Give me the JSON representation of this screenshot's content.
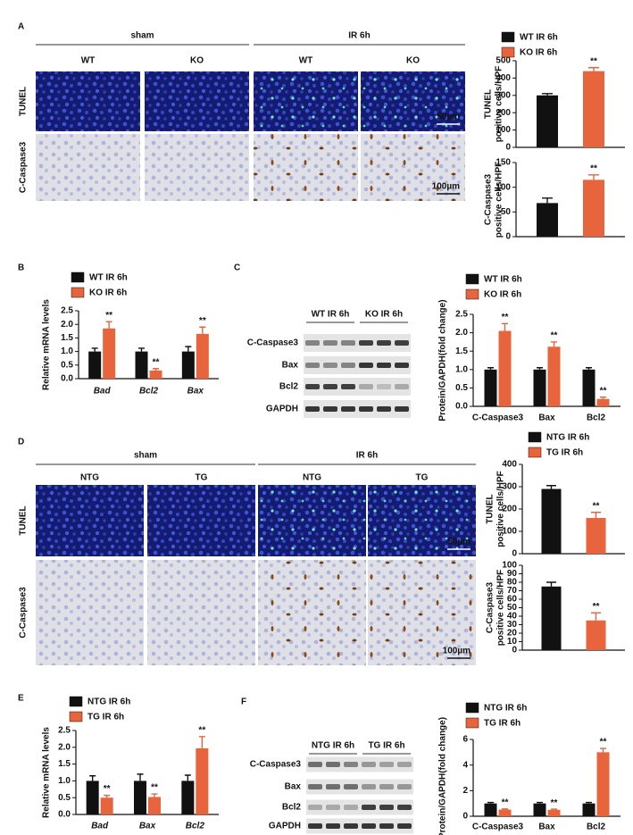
{
  "figure": {
    "panels": [
      {
        "letter": "A",
        "groups": [
          "sham",
          "IR 6h"
        ],
        "columns": [
          "WT",
          "KO",
          "WT",
          "KO"
        ],
        "rows": [
          "TUNEL",
          "C-Caspase3"
        ],
        "scale_bars": [
          "50µm",
          "100µm"
        ]
      },
      {
        "letter": "B"
      },
      {
        "letter": "C",
        "blot_groups": [
          "WT IR 6h",
          "KO IR 6h"
        ],
        "blot_rows": [
          "C-Caspase3",
          "Bax",
          "Bcl2",
          "GAPDH"
        ]
      },
      {
        "letter": "D",
        "groups": [
          "sham",
          "IR 6h"
        ],
        "columns": [
          "NTG",
          "TG",
          "NTG",
          "TG"
        ],
        "rows": [
          "TUNEL",
          "C-Caspase3"
        ],
        "scale_bars": [
          "50µm",
          "100µm"
        ]
      },
      {
        "letter": "E"
      },
      {
        "letter": "F",
        "blot_groups": [
          "NTG IR 6h",
          "TG IR 6h"
        ],
        "blot_rows": [
          "C-Caspase3",
          "Bax",
          "Bcl2",
          "GAPDH"
        ]
      }
    ]
  },
  "chart_data": [
    {
      "type": "bar",
      "ylabel": [
        "TUNEL",
        "positive cells/HPF"
      ],
      "categories": [
        null
      ],
      "series": [
        {
          "name": "WT IR 6h",
          "color": "#111111",
          "values": [
            300
          ],
          "errors": [
            10
          ]
        },
        {
          "name": "KO IR 6h",
          "color": "#e8643c",
          "values": [
            440
          ],
          "errors": [
            20
          ],
          "annotations": [
            "**"
          ]
        }
      ],
      "ylim": [
        0,
        500
      ],
      "yticks": [
        0,
        100,
        200,
        300,
        400,
        500
      ]
    },
    {
      "type": "bar",
      "ylabel": [
        "C-Caspase3",
        "positive cells/HPF"
      ],
      "categories": [
        null
      ],
      "series": [
        {
          "color": "#111111",
          "values": [
            68
          ],
          "errors": [
            10
          ]
        },
        {
          "color": "#e8643c",
          "values": [
            115
          ],
          "errors": [
            10
          ],
          "annotations": [
            "**"
          ]
        }
      ],
      "ylim": [
        0,
        150
      ],
      "yticks": [
        0,
        50,
        100,
        150
      ]
    },
    {
      "type": "bar",
      "ylabel": [
        "Relative mRNA levels"
      ],
      "categories": [
        "Bad",
        "Bcl2",
        "Bax"
      ],
      "italic_categories": true,
      "series": [
        {
          "name": "WT IR 6h",
          "color": "#111111",
          "values": [
            1.0,
            1.0,
            1.0
          ],
          "errors": [
            0.12,
            0.12,
            0.18
          ]
        },
        {
          "name": "KO IR 6h",
          "color": "#e8643c",
          "values": [
            1.85,
            0.3,
            1.65
          ],
          "errors": [
            0.25,
            0.07,
            0.25
          ],
          "annotations": [
            "**",
            "**",
            "**"
          ]
        }
      ],
      "ylim": [
        0,
        2.5
      ],
      "yticks": [
        {
          "value": 0,
          "label": "0.0"
        },
        0.5,
        {
          "value": 1,
          "label": "1.0"
        },
        1.5,
        {
          "value": 2,
          "label": "2.0"
        },
        2.5
      ]
    },
    {
      "type": "bar",
      "ylabel": [
        "Protein/GAPDH(fold change)"
      ],
      "categories": [
        "C-Caspase3",
        "Bax",
        "Bcl2"
      ],
      "italic_categories": false,
      "series": [
        {
          "name": "WT IR 6h",
          "color": "#111111",
          "values": [
            1.0,
            1.0,
            1.0
          ],
          "errors": [
            0.05,
            0.05,
            0.05
          ]
        },
        {
          "name": "KO IR 6h",
          "color": "#e8643c",
          "values": [
            2.05,
            1.62,
            0.2
          ],
          "errors": [
            0.2,
            0.13,
            0.05
          ],
          "annotations": [
            "**",
            "**",
            "**"
          ]
        }
      ],
      "ylim": [
        0,
        2.5
      ],
      "yticks": [
        {
          "value": 0,
          "label": "0.0"
        },
        0.5,
        {
          "value": 1,
          "label": "1.0"
        },
        1.5,
        {
          "value": 2,
          "label": "2.0"
        },
        2.5
      ]
    },
    {
      "type": "bar",
      "ylabel": [
        "TUNEL",
        "positive cells/HPF"
      ],
      "categories": [
        null
      ],
      "series": [
        {
          "name": "NTG IR 6h",
          "color": "#111111",
          "values": [
            290
          ],
          "errors": [
            15
          ]
        },
        {
          "name": "TG IR 6h",
          "color": "#e8643c",
          "values": [
            160
          ],
          "errors": [
            25
          ],
          "annotations": [
            "**"
          ]
        }
      ],
      "ylim": [
        0,
        400
      ],
      "yticks": [
        0,
        100,
        200,
        300,
        400
      ]
    },
    {
      "type": "bar",
      "ylabel": [
        "C-Caspase3",
        "positive cells/HPF"
      ],
      "categories": [
        null
      ],
      "series": [
        {
          "color": "#111111",
          "values": [
            75
          ],
          "errors": [
            5
          ]
        },
        {
          "color": "#e8643c",
          "values": [
            35
          ],
          "errors": [
            9
          ],
          "annotations": [
            "**"
          ]
        }
      ],
      "ylim": [
        0,
        100
      ],
      "yticks": [
        0,
        10,
        20,
        30,
        40,
        50,
        60,
        70,
        80,
        90,
        100
      ]
    },
    {
      "type": "bar",
      "ylabel": [
        "Relative mRNA levels"
      ],
      "categories": [
        "Bad",
        "Bax",
        "Bcl2"
      ],
      "italic_categories": true,
      "series": [
        {
          "name": "NTG IR 6h",
          "color": "#111111",
          "values": [
            1.0,
            1.0,
            1.0
          ],
          "errors": [
            0.15,
            0.2,
            0.17
          ]
        },
        {
          "name": "TG IR 6h",
          "color": "#e8643c",
          "values": [
            0.5,
            0.52,
            1.97
          ],
          "errors": [
            0.07,
            0.09,
            0.35
          ],
          "annotations": [
            "**",
            "**",
            "**"
          ]
        }
      ],
      "ylim": [
        0,
        2.5
      ],
      "yticks": [
        {
          "value": 0,
          "label": "0.0"
        },
        0.5,
        {
          "value": 1,
          "label": "1.0"
        },
        1.5,
        {
          "value": 2,
          "label": "2.0"
        },
        2.5
      ]
    },
    {
      "type": "bar",
      "ylabel": [
        "Protein/GAPDH(fold change)"
      ],
      "categories": [
        "C-Caspase3",
        "Bax",
        "Bcl2"
      ],
      "italic_categories": false,
      "series": [
        {
          "name": "NTG IR 6h",
          "color": "#111111",
          "values": [
            1.0,
            1.0,
            1.0
          ],
          "errors": [
            0.08,
            0.08,
            0.08
          ]
        },
        {
          "name": "TG IR 6h",
          "color": "#e8643c",
          "values": [
            0.52,
            0.5,
            5.0
          ],
          "errors": [
            0.05,
            0.05,
            0.3
          ],
          "annotations": [
            "**",
            "**",
            "**"
          ]
        }
      ],
      "ylim": [
        0,
        6
      ],
      "yticks": [
        0,
        2,
        4,
        6
      ]
    }
  ]
}
